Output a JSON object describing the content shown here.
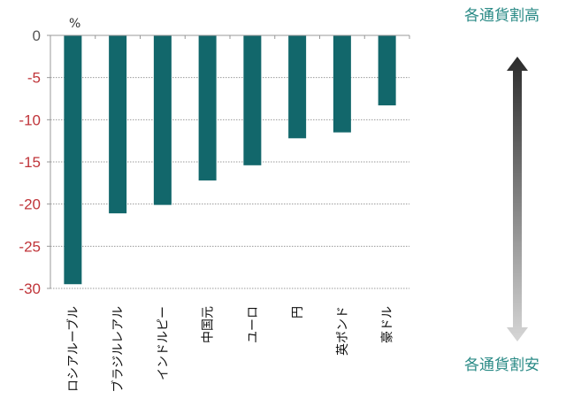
{
  "chart_data": {
    "type": "bar",
    "unit_label": "%",
    "categories": [
      "ロシアルーブル",
      "ブラジルレアル",
      "インドルピー",
      "中国元",
      "ユーロ",
      "円",
      "英ポンド",
      "豪ドル"
    ],
    "values": [
      -29.5,
      -21.1,
      -20.1,
      -17.2,
      -15.4,
      -12.2,
      -11.5,
      -8.3
    ],
    "ylim": [
      -30,
      0
    ],
    "yticks": [
      0,
      -5,
      -10,
      -15,
      -20,
      -25,
      -30
    ],
    "grid": true,
    "annotations": {
      "top": "各通貨割高",
      "bottom": "各通貨割安"
    },
    "colors": {
      "bar": "#12676b",
      "negative_tick": "#c0353a",
      "zero_tick": "#555555",
      "annotation": "#2a8a86"
    }
  }
}
